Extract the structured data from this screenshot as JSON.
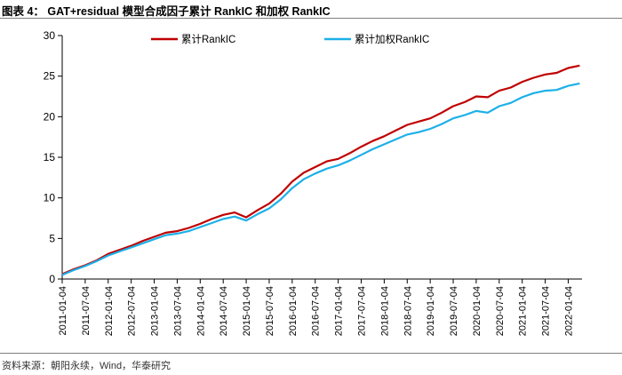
{
  "figure": {
    "title": "图表 4：  GAT+residual 模型合成因子累计 RankIC 和加权 RankIC",
    "source": "资料来源：朝阳永续，Wind，华泰研究"
  },
  "chart_data": {
    "type": "line",
    "title": "",
    "xlabel": "",
    "ylabel": "",
    "ylim": [
      0,
      30
    ],
    "yticks": [
      "0",
      "5",
      "10",
      "15",
      "20",
      "25",
      "30"
    ],
    "xticks": [
      "2011-01-04",
      "2011-07-04",
      "2012-01-04",
      "2012-07-04",
      "2013-01-04",
      "2013-07-04",
      "2014-01-04",
      "2014-07-04",
      "2015-01-04",
      "2015-07-04",
      "2016-01-04",
      "2016-07-04",
      "2017-01-04",
      "2017-07-04",
      "2018-01-04",
      "2018-07-04",
      "2019-01-04",
      "2019-07-04",
      "2020-01-04",
      "2020-07-04",
      "2021-01-04",
      "2021-07-04",
      "2022-01-04"
    ],
    "grid": false,
    "legend_position": "top",
    "x": [
      2011.0,
      2011.25,
      2011.5,
      2011.75,
      2012.0,
      2012.25,
      2012.5,
      2012.75,
      2013.0,
      2013.25,
      2013.5,
      2013.75,
      2014.0,
      2014.25,
      2014.5,
      2014.75,
      2015.0,
      2015.25,
      2015.5,
      2015.75,
      2016.0,
      2016.25,
      2016.5,
      2016.75,
      2017.0,
      2017.25,
      2017.5,
      2017.75,
      2018.0,
      2018.25,
      2018.5,
      2018.75,
      2019.0,
      2019.25,
      2019.5,
      2019.75,
      2020.0,
      2020.25,
      2020.5,
      2020.75,
      2021.0,
      2021.25,
      2021.5,
      2021.75,
      2022.0,
      2022.25
    ],
    "series": [
      {
        "name": "累计RankIC",
        "color": "#c00000",
        "values": [
          0.6,
          1.2,
          1.7,
          2.3,
          3.1,
          3.6,
          4.1,
          4.7,
          5.2,
          5.7,
          5.9,
          6.3,
          6.8,
          7.4,
          7.9,
          8.2,
          7.6,
          8.5,
          9.3,
          10.5,
          12.0,
          13.1,
          13.8,
          14.5,
          14.8,
          15.5,
          16.3,
          17.0,
          17.6,
          18.3,
          19.0,
          19.4,
          19.8,
          20.5,
          21.3,
          21.8,
          22.5,
          22.4,
          23.2,
          23.6,
          24.3,
          24.8,
          25.2,
          25.4,
          26.0,
          26.3
        ]
      },
      {
        "name": "累计加权RankIC",
        "color": "#1cb0e8",
        "values": [
          0.5,
          1.1,
          1.6,
          2.2,
          2.9,
          3.4,
          3.9,
          4.4,
          4.9,
          5.4,
          5.6,
          5.9,
          6.4,
          6.9,
          7.4,
          7.7,
          7.2,
          8.0,
          8.7,
          9.8,
          11.2,
          12.3,
          13.0,
          13.6,
          14.0,
          14.6,
          15.3,
          16.0,
          16.6,
          17.2,
          17.8,
          18.1,
          18.5,
          19.1,
          19.8,
          20.2,
          20.7,
          20.5,
          21.3,
          21.7,
          22.4,
          22.9,
          23.2,
          23.3,
          23.8,
          24.1
        ]
      }
    ]
  }
}
